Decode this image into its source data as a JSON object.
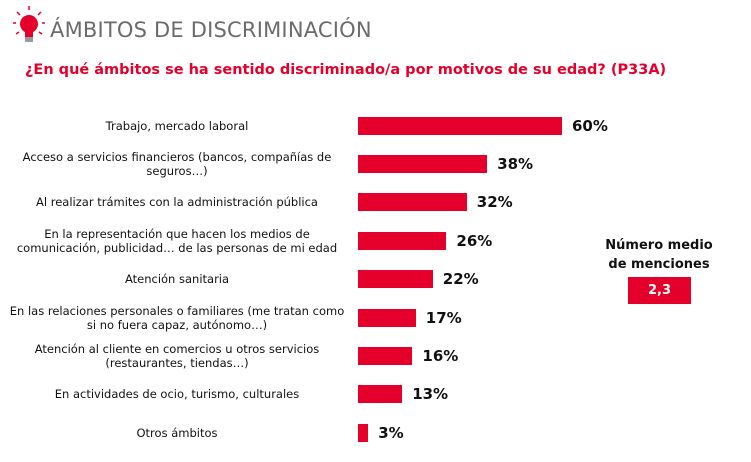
{
  "header": {
    "title": "ÁMBITOS DE DISCRIMINACIÓN",
    "icon": "lightbulb-icon"
  },
  "chart_data": {
    "type": "bar",
    "orientation": "horizontal",
    "title": "¿En qué ámbitos se ha sentido discriminado/a por motivos de su edad? (P33A)",
    "categories": [
      "Trabajo, mercado laboral",
      "Acceso a servicios financieros (bancos, compañías de seguros…)",
      "Al realizar trámites con la administración pública",
      "En la representación que hacen los medios de comunicación, publicidad… de las personas de mi edad",
      "Atención sanitaria",
      "En las relaciones personales o familiares (me tratan como si no fuera capaz, autónomo…)",
      "Atención al cliente en comercios u otros servicios (restaurantes, tiendas…)",
      "En actividades de ocio, turismo, culturales",
      "Otros ámbitos"
    ],
    "values": [
      60,
      38,
      32,
      26,
      22,
      17,
      16,
      13,
      3
    ],
    "value_labels": [
      "60%",
      "38%",
      "32%",
      "26%",
      "22%",
      "17%",
      "16%",
      "13%",
      "3%"
    ],
    "bar_color": "#e4002b",
    "xlim": [
      0,
      100
    ],
    "grid": false
  },
  "summary": {
    "label": "Número medio de menciones",
    "value": "2,3"
  }
}
